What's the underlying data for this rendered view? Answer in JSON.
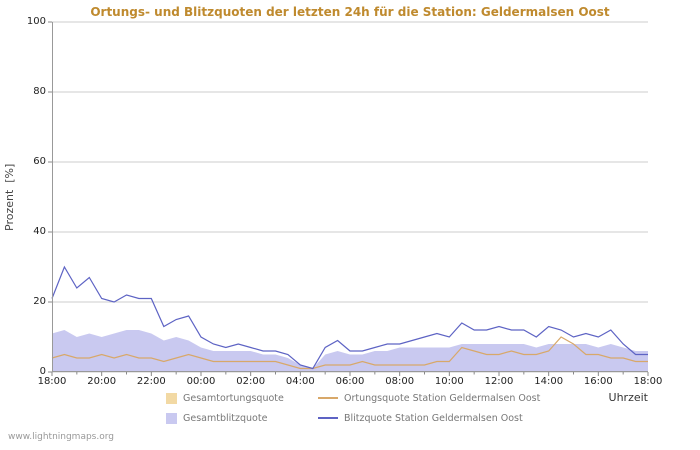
{
  "colors": {
    "title": "#bf8a2e",
    "grid": "#cccccc",
    "axis": "#999999",
    "tick": "#888888"
  },
  "axes": {
    "y_ticks": [
      0,
      20,
      40,
      60,
      80,
      100
    ],
    "x_ticks": [
      "18:00",
      "20:00",
      "22:00",
      "00:00",
      "02:00",
      "04:00",
      "06:00",
      "08:00",
      "10:00",
      "12:00",
      "14:00",
      "16:00",
      "18:00"
    ]
  },
  "legend": {
    "items": [
      {
        "label": "Gesamtortungsquote",
        "swatch": "area",
        "color": "#f2d9a4"
      },
      {
        "label": "Ortungsquote Station Geldermalsen Oost",
        "swatch": "line",
        "color": "#d8a869"
      },
      {
        "label": "Gesamtblitzquote",
        "swatch": "area",
        "color": "#c9c9f0"
      },
      {
        "label": "Blitzquote Station Geldermalsen Oost",
        "swatch": "line",
        "color": "#5d63c4"
      }
    ]
  },
  "footer": {
    "watermark": "www.lightningmaps.org"
  },
  "chart_data": {
    "type": "line",
    "title": "Ortungs- und Blitzquoten der letzten 24h für die Station: Geldermalsen Oost",
    "xlabel": "Uhrzeit",
    "ylabel": "Prozent  [%]",
    "ylim": [
      0,
      100
    ],
    "grid": true,
    "legend_position": "bottom",
    "x": [
      "18:00",
      "18:30",
      "19:00",
      "19:30",
      "20:00",
      "20:30",
      "21:00",
      "21:30",
      "22:00",
      "22:30",
      "23:00",
      "23:30",
      "00:00",
      "00:30",
      "01:00",
      "01:30",
      "02:00",
      "02:30",
      "03:00",
      "03:30",
      "04:00",
      "04:30",
      "05:00",
      "05:30",
      "06:00",
      "06:30",
      "07:00",
      "07:30",
      "08:00",
      "08:30",
      "09:00",
      "09:30",
      "10:00",
      "10:30",
      "11:00",
      "11:30",
      "12:00",
      "12:30",
      "13:00",
      "13:30",
      "14:00",
      "14:30",
      "15:00",
      "15:30",
      "16:00",
      "16:30",
      "17:00",
      "17:30",
      "18:00"
    ],
    "series": [
      {
        "name": "Gesamtortungsquote",
        "style": "area",
        "color": "#f2d9a4",
        "values": [
          5,
          6,
          5,
          5,
          5,
          5,
          5,
          5,
          4,
          4,
          4,
          4,
          4,
          3,
          3,
          3,
          3,
          3,
          3,
          2,
          1,
          1,
          2,
          2,
          2,
          2,
          2,
          2,
          2,
          2,
          3,
          3,
          3,
          5,
          5,
          5,
          5,
          5,
          5,
          4,
          5,
          6,
          5,
          4,
          4,
          4,
          3,
          3,
          3
        ]
      },
      {
        "name": "Gesamtblitzquote",
        "style": "area",
        "color": "#c9c9f0",
        "values": [
          11,
          12,
          10,
          11,
          10,
          11,
          12,
          12,
          11,
          9,
          10,
          9,
          7,
          6,
          6,
          6,
          6,
          5,
          5,
          4,
          2,
          1,
          5,
          6,
          5,
          5,
          6,
          6,
          7,
          7,
          7,
          7,
          7,
          8,
          8,
          8,
          8,
          8,
          8,
          7,
          8,
          8,
          8,
          8,
          7,
          8,
          7,
          6,
          6
        ]
      },
      {
        "name": "Ortungsquote Station Geldermalsen Oost",
        "style": "line",
        "color": "#d8a869",
        "values": [
          4,
          5,
          4,
          4,
          5,
          4,
          5,
          4,
          4,
          3,
          4,
          5,
          4,
          3,
          3,
          3,
          3,
          3,
          3,
          2,
          1,
          1,
          2,
          2,
          2,
          3,
          2,
          2,
          2,
          2,
          2,
          3,
          3,
          7,
          6,
          5,
          5,
          6,
          5,
          5,
          6,
          10,
          8,
          5,
          5,
          4,
          4,
          3,
          3
        ]
      },
      {
        "name": "Blitzquote Station Geldermalsen Oost",
        "style": "line",
        "color": "#5d63c4",
        "values": [
          21,
          30,
          24,
          27,
          21,
          20,
          22,
          21,
          21,
          13,
          15,
          16,
          10,
          8,
          7,
          8,
          7,
          6,
          6,
          5,
          2,
          1,
          7,
          9,
          6,
          6,
          7,
          8,
          8,
          9,
          10,
          11,
          10,
          14,
          12,
          12,
          13,
          12,
          12,
          10,
          13,
          12,
          10,
          11,
          10,
          12,
          8,
          5,
          5
        ]
      }
    ]
  }
}
